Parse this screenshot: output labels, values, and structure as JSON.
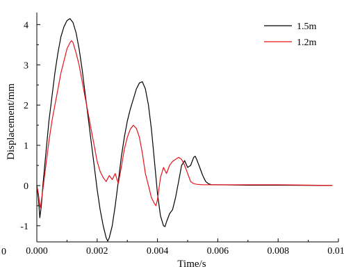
{
  "chart_data": {
    "type": "line",
    "title": "",
    "xlabel": "Time/s",
    "ylabel": "Displacement/mm",
    "xlim": [
      0.0,
      0.01
    ],
    "ylim": [
      -1.4,
      4.3
    ],
    "x_ticks": [
      0.0,
      0.002,
      0.004,
      0.006,
      0.008,
      0.01
    ],
    "x_tick_labels": [
      "0.000",
      "0.002",
      "0.004",
      "0.006",
      "0.008",
      "0.010"
    ],
    "y_ticks": [
      -1,
      0,
      1,
      2,
      3,
      4
    ],
    "y_tick_labels": [
      "-1",
      "0",
      "1",
      "2",
      "3",
      "4"
    ],
    "corner_label": "0",
    "grid": false,
    "legend_position": "top-right",
    "series": [
      {
        "name": "1.5m",
        "color": "#000000",
        "points": [
          [
            0.0,
            0.0
          ],
          [
            5e-05,
            -0.3
          ],
          [
            0.0001,
            -0.8
          ],
          [
            0.00015,
            -0.5
          ],
          [
            0.0002,
            0.0
          ],
          [
            0.0003,
            0.8
          ],
          [
            0.0004,
            1.6
          ],
          [
            0.0005,
            2.2
          ],
          [
            0.0006,
            2.8
          ],
          [
            0.0007,
            3.3
          ],
          [
            0.0008,
            3.7
          ],
          [
            0.0009,
            3.95
          ],
          [
            0.001,
            4.1
          ],
          [
            0.0011,
            4.15
          ],
          [
            0.0012,
            4.05
          ],
          [
            0.0013,
            3.8
          ],
          [
            0.0014,
            3.4
          ],
          [
            0.0015,
            2.9
          ],
          [
            0.0016,
            2.3
          ],
          [
            0.0017,
            1.7
          ],
          [
            0.0018,
            1.1
          ],
          [
            0.0019,
            0.5
          ],
          [
            0.002,
            -0.1
          ],
          [
            0.0021,
            -0.6
          ],
          [
            0.0022,
            -1.0
          ],
          [
            0.0023,
            -1.3
          ],
          [
            0.00235,
            -1.38
          ],
          [
            0.0024,
            -1.3
          ],
          [
            0.0025,
            -1.0
          ],
          [
            0.0026,
            -0.5
          ],
          [
            0.0027,
            0.1
          ],
          [
            0.0028,
            0.7
          ],
          [
            0.0029,
            1.2
          ],
          [
            0.003,
            1.6
          ],
          [
            0.0031,
            1.9
          ],
          [
            0.0032,
            2.15
          ],
          [
            0.0033,
            2.4
          ],
          [
            0.0034,
            2.55
          ],
          [
            0.0035,
            2.58
          ],
          [
            0.0036,
            2.4
          ],
          [
            0.0037,
            2.0
          ],
          [
            0.0038,
            1.4
          ],
          [
            0.0039,
            0.6
          ],
          [
            0.004,
            -0.2
          ],
          [
            0.0041,
            -0.75
          ],
          [
            0.0042,
            -1.0
          ],
          [
            0.00425,
            -1.02
          ],
          [
            0.0043,
            -0.9
          ],
          [
            0.0044,
            -0.7
          ],
          [
            0.0045,
            -0.6
          ],
          [
            0.0046,
            -0.3
          ],
          [
            0.0047,
            0.1
          ],
          [
            0.0048,
            0.5
          ],
          [
            0.0049,
            0.62
          ],
          [
            0.005,
            0.45
          ],
          [
            0.0051,
            0.5
          ],
          [
            0.0052,
            0.7
          ],
          [
            0.00525,
            0.73
          ],
          [
            0.0053,
            0.65
          ],
          [
            0.0054,
            0.45
          ],
          [
            0.0055,
            0.25
          ],
          [
            0.0056,
            0.1
          ],
          [
            0.0057,
            0.04
          ],
          [
            0.0058,
            0.02
          ],
          [
            0.006,
            0.02
          ],
          [
            0.007,
            0.01
          ],
          [
            0.008,
            0.01
          ],
          [
            0.009,
            0.005
          ],
          [
            0.0098,
            0.0
          ]
        ]
      },
      {
        "name": "1.2m",
        "color": "#e8111a",
        "points": [
          [
            0.0,
            0.0
          ],
          [
            5e-05,
            -0.2
          ],
          [
            0.0001,
            -0.5
          ],
          [
            0.00012,
            -0.55
          ],
          [
            0.0002,
            -0.1
          ],
          [
            0.0003,
            0.5
          ],
          [
            0.0004,
            1.1
          ],
          [
            0.0005,
            1.6
          ],
          [
            0.0006,
            2.0
          ],
          [
            0.0007,
            2.4
          ],
          [
            0.0008,
            2.8
          ],
          [
            0.0009,
            3.1
          ],
          [
            0.001,
            3.4
          ],
          [
            0.0011,
            3.55
          ],
          [
            0.00115,
            3.6
          ],
          [
            0.0012,
            3.55
          ],
          [
            0.0013,
            3.3
          ],
          [
            0.0014,
            3.0
          ],
          [
            0.0015,
            2.6
          ],
          [
            0.0016,
            2.2
          ],
          [
            0.0017,
            1.8
          ],
          [
            0.0018,
            1.4
          ],
          [
            0.0019,
            1.0
          ],
          [
            0.002,
            0.6
          ],
          [
            0.0021,
            0.35
          ],
          [
            0.0022,
            0.2
          ],
          [
            0.0023,
            0.1
          ],
          [
            0.0024,
            0.25
          ],
          [
            0.0025,
            0.15
          ],
          [
            0.0026,
            0.3
          ],
          [
            0.0027,
            0.05
          ],
          [
            0.0028,
            0.45
          ],
          [
            0.0029,
            0.9
          ],
          [
            0.003,
            1.2
          ],
          [
            0.0031,
            1.4
          ],
          [
            0.0032,
            1.5
          ],
          [
            0.0033,
            1.42
          ],
          [
            0.0034,
            1.2
          ],
          [
            0.0035,
            0.8
          ],
          [
            0.0036,
            0.3
          ],
          [
            0.0037,
            0.0
          ],
          [
            0.0038,
            -0.3
          ],
          [
            0.0039,
            -0.45
          ],
          [
            0.00395,
            -0.5
          ],
          [
            0.004,
            -0.35
          ],
          [
            0.0041,
            0.2
          ],
          [
            0.0042,
            0.45
          ],
          [
            0.0043,
            0.3
          ],
          [
            0.0044,
            0.5
          ],
          [
            0.0045,
            0.6
          ],
          [
            0.0046,
            0.65
          ],
          [
            0.0047,
            0.7
          ],
          [
            0.0048,
            0.65
          ],
          [
            0.0049,
            0.5
          ],
          [
            0.005,
            0.3
          ],
          [
            0.0051,
            0.1
          ],
          [
            0.0052,
            0.05
          ],
          [
            0.0053,
            0.03
          ],
          [
            0.0055,
            0.02
          ],
          [
            0.006,
            0.02
          ],
          [
            0.007,
            0.02
          ],
          [
            0.008,
            0.02
          ],
          [
            0.009,
            0.01
          ],
          [
            0.0098,
            0.0
          ]
        ]
      }
    ]
  }
}
